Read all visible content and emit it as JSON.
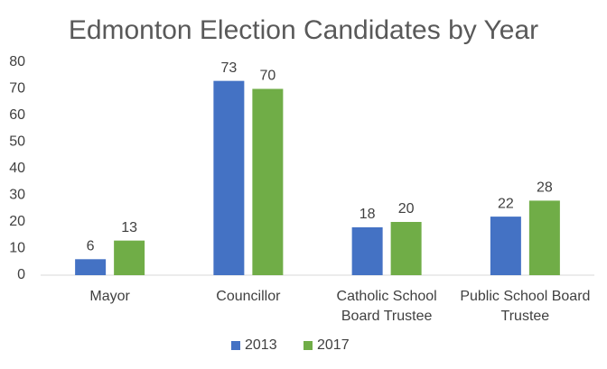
{
  "chart_data": {
    "type": "bar",
    "title": "Edmonton Election Candidates by Year",
    "categories": [
      "Mayor",
      "Councillor",
      "Catholic School Board Trustee",
      "Public School Board Trustee"
    ],
    "series": [
      {
        "name": "2013",
        "color": "#4472c4",
        "values": [
          6,
          73,
          18,
          22
        ]
      },
      {
        "name": "2017",
        "color": "#70ad47",
        "values": [
          13,
          70,
          20,
          28
        ]
      }
    ],
    "ylim": [
      0,
      80
    ],
    "yticks": [
      0,
      10,
      20,
      30,
      40,
      50,
      60,
      70,
      80
    ],
    "grid": false,
    "legend": "bottom"
  }
}
